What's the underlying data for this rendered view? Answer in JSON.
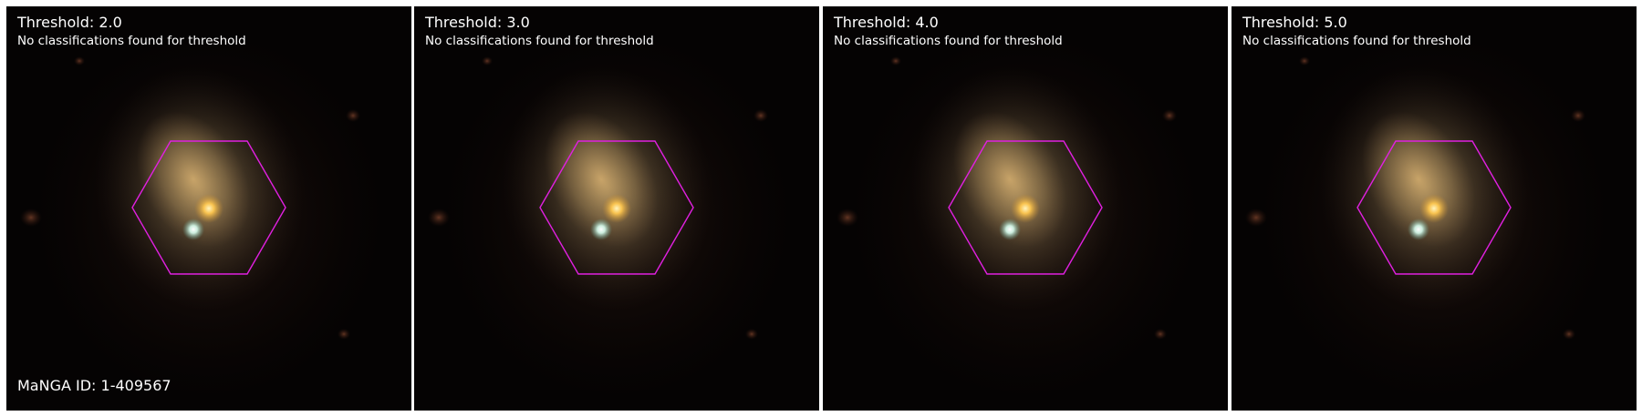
{
  "panels": [
    {
      "title": "Threshold: 2.0",
      "message": "No classifications found for threshold"
    },
    {
      "title": "Threshold: 3.0",
      "message": "No classifications found for threshold"
    },
    {
      "title": "Threshold: 4.0",
      "message": "No classifications found for threshold"
    },
    {
      "title": "Threshold: 5.0",
      "message": "No classifications found for threshold"
    }
  ],
  "manga_id": "MaNGA ID: 1-409567",
  "colors": {
    "hexagon": "#e020e0",
    "galaxy_core": "#ffc850",
    "companion_star": "#e0fff0",
    "background": "#050303"
  }
}
